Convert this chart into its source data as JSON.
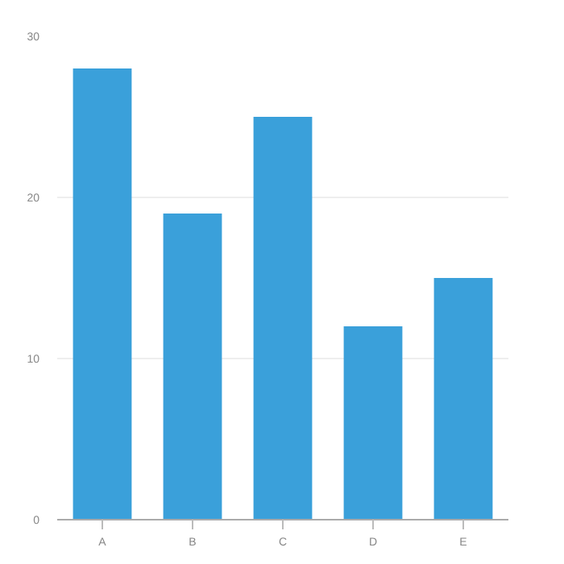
{
  "chart_data": {
    "type": "bar",
    "categories": [
      "A",
      "B",
      "C",
      "D",
      "E"
    ],
    "values": [
      28,
      19,
      25,
      12,
      15
    ],
    "color": "#3aa0da",
    "ylim": [
      0,
      30
    ],
    "yticks": [
      0,
      10,
      20,
      30
    ],
    "grid": "y"
  }
}
